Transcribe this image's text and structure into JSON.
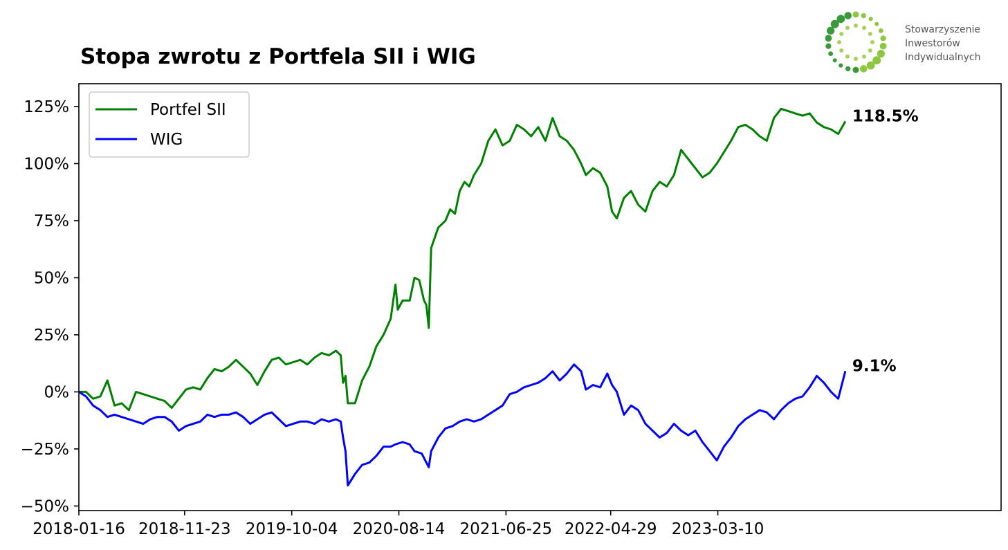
{
  "logo": {
    "text_lines": [
      "Stowarzyszenie",
      "Inwestorów",
      "Indywidualnych"
    ]
  },
  "chart_data": {
    "type": "line",
    "title": "Stopa zwrotu z Portfela SII i WIG",
    "xlabel": "",
    "ylabel": "",
    "x_ticks": [
      "2018-01-16",
      "2018-11-23",
      "2019-10-04",
      "2020-08-14",
      "2021-06-25",
      "2022-04-29",
      "2023-03-10"
    ],
    "x_range": [
      "2018-01-16",
      "2025-06-20"
    ],
    "y_ticks": [
      -50,
      -25,
      0,
      25,
      50,
      75,
      100,
      125
    ],
    "y_tick_labels": [
      "−50%",
      "−25%",
      "0%",
      "25%",
      "50%",
      "75%",
      "100%",
      "125%"
    ],
    "ylim": [
      -52,
      135
    ],
    "grid": false,
    "legend_position": "top-left",
    "series": [
      {
        "name": "Portfel SII",
        "color": "#008000",
        "end_label": "118.5%",
        "points": [
          [
            "2018-01-16",
            0
          ],
          [
            "2018-02-06",
            0
          ],
          [
            "2018-02-27",
            -3
          ],
          [
            "2018-03-20",
            -2
          ],
          [
            "2018-04-10",
            5
          ],
          [
            "2018-05-01",
            -6
          ],
          [
            "2018-05-22",
            -5
          ],
          [
            "2018-06-12",
            -8
          ],
          [
            "2018-07-03",
            0
          ],
          [
            "2018-07-24",
            -1
          ],
          [
            "2018-08-14",
            -2
          ],
          [
            "2018-09-04",
            -3
          ],
          [
            "2018-09-25",
            -4
          ],
          [
            "2018-10-16",
            -7
          ],
          [
            "2018-11-06",
            -3
          ],
          [
            "2018-11-27",
            1
          ],
          [
            "2018-12-18",
            2
          ],
          [
            "2019-01-08",
            1
          ],
          [
            "2019-01-29",
            6
          ],
          [
            "2019-02-19",
            10
          ],
          [
            "2019-03-12",
            9
          ],
          [
            "2019-04-02",
            11
          ],
          [
            "2019-04-23",
            14
          ],
          [
            "2019-05-14",
            11
          ],
          [
            "2019-06-04",
            8
          ],
          [
            "2019-06-25",
            3
          ],
          [
            "2019-07-16",
            9
          ],
          [
            "2019-08-06",
            14
          ],
          [
            "2019-08-27",
            15
          ],
          [
            "2019-09-17",
            12
          ],
          [
            "2019-10-08",
            13
          ],
          [
            "2019-10-29",
            14
          ],
          [
            "2019-11-19",
            12
          ],
          [
            "2019-12-10",
            15
          ],
          [
            "2019-12-31",
            17
          ],
          [
            "2020-01-21",
            16
          ],
          [
            "2020-02-11",
            18
          ],
          [
            "2020-02-25",
            16
          ],
          [
            "2020-03-03",
            4
          ],
          [
            "2020-03-10",
            7
          ],
          [
            "2020-03-17",
            -5
          ],
          [
            "2020-04-07",
            -5
          ],
          [
            "2020-04-28",
            5
          ],
          [
            "2020-05-19",
            11
          ],
          [
            "2020-06-09",
            20
          ],
          [
            "2020-06-30",
            25
          ],
          [
            "2020-07-21",
            32
          ],
          [
            "2020-08-04",
            47
          ],
          [
            "2020-08-11",
            36
          ],
          [
            "2020-08-25",
            40
          ],
          [
            "2020-09-15",
            40
          ],
          [
            "2020-09-29",
            50
          ],
          [
            "2020-10-13",
            49
          ],
          [
            "2020-10-27",
            40
          ],
          [
            "2020-11-03",
            38
          ],
          [
            "2020-11-10",
            28
          ],
          [
            "2020-11-17",
            63
          ],
          [
            "2020-12-08",
            72
          ],
          [
            "2020-12-29",
            75
          ],
          [
            "2021-01-12",
            80
          ],
          [
            "2021-01-26",
            78
          ],
          [
            "2021-02-09",
            88
          ],
          [
            "2021-02-23",
            92
          ],
          [
            "2021-03-09",
            90
          ],
          [
            "2021-03-23",
            95
          ],
          [
            "2021-04-13",
            100
          ],
          [
            "2021-05-04",
            110
          ],
          [
            "2021-05-25",
            115
          ],
          [
            "2021-06-15",
            108
          ],
          [
            "2021-07-06",
            110
          ],
          [
            "2021-07-27",
            117
          ],
          [
            "2021-08-17",
            115
          ],
          [
            "2021-09-07",
            112
          ],
          [
            "2021-09-28",
            116
          ],
          [
            "2021-10-19",
            110
          ],
          [
            "2021-11-09",
            120
          ],
          [
            "2021-11-30",
            112
          ],
          [
            "2021-12-21",
            110
          ],
          [
            "2022-01-11",
            106
          ],
          [
            "2022-02-01",
            100
          ],
          [
            "2022-02-15",
            95
          ],
          [
            "2022-03-08",
            98
          ],
          [
            "2022-03-29",
            96
          ],
          [
            "2022-04-19",
            90
          ],
          [
            "2022-05-03",
            79
          ],
          [
            "2022-05-17",
            76
          ],
          [
            "2022-06-07",
            85
          ],
          [
            "2022-06-28",
            88
          ],
          [
            "2022-07-19",
            82
          ],
          [
            "2022-08-09",
            79
          ],
          [
            "2022-08-30",
            88
          ],
          [
            "2022-09-20",
            92
          ],
          [
            "2022-10-11",
            90
          ],
          [
            "2022-11-01",
            95
          ],
          [
            "2022-11-22",
            106
          ],
          [
            "2022-12-13",
            102
          ],
          [
            "2023-01-03",
            98
          ],
          [
            "2023-01-24",
            94
          ],
          [
            "2023-02-14",
            96
          ],
          [
            "2023-03-07",
            100
          ],
          [
            "2023-03-28",
            105
          ],
          [
            "2023-04-18",
            110
          ],
          [
            "2023-05-09",
            116
          ],
          [
            "2023-05-30",
            117
          ],
          [
            "2023-06-20",
            115
          ],
          [
            "2023-07-11",
            112
          ],
          [
            "2023-08-01",
            110
          ],
          [
            "2023-08-22",
            120
          ],
          [
            "2023-09-12",
            124
          ],
          [
            "2023-10-03",
            123
          ],
          [
            "2023-10-24",
            122
          ],
          [
            "2023-11-14",
            121
          ],
          [
            "2023-12-05",
            122
          ],
          [
            "2023-12-26",
            118
          ],
          [
            "2024-01-16",
            116
          ],
          [
            "2024-02-06",
            115
          ],
          [
            "2024-02-27",
            113
          ],
          [
            "2024-03-19",
            118.5
          ]
        ]
      },
      {
        "name": "WIG",
        "color": "#0000ff",
        "end_label": "9.1%",
        "points": [
          [
            "2018-01-16",
            0
          ],
          [
            "2018-02-06",
            -2
          ],
          [
            "2018-02-27",
            -6
          ],
          [
            "2018-03-20",
            -8
          ],
          [
            "2018-04-10",
            -11
          ],
          [
            "2018-05-01",
            -10
          ],
          [
            "2018-05-22",
            -11
          ],
          [
            "2018-06-12",
            -12
          ],
          [
            "2018-07-03",
            -13
          ],
          [
            "2018-07-24",
            -14
          ],
          [
            "2018-08-14",
            -12
          ],
          [
            "2018-09-04",
            -11
          ],
          [
            "2018-09-25",
            -11
          ],
          [
            "2018-10-16",
            -13
          ],
          [
            "2018-11-06",
            -17
          ],
          [
            "2018-11-27",
            -15
          ],
          [
            "2018-12-18",
            -14
          ],
          [
            "2019-01-08",
            -13
          ],
          [
            "2019-01-29",
            -10
          ],
          [
            "2019-02-19",
            -11
          ],
          [
            "2019-03-12",
            -10
          ],
          [
            "2019-04-02",
            -10
          ],
          [
            "2019-04-23",
            -9
          ],
          [
            "2019-05-14",
            -11
          ],
          [
            "2019-06-04",
            -14
          ],
          [
            "2019-06-25",
            -12
          ],
          [
            "2019-07-16",
            -10
          ],
          [
            "2019-08-06",
            -9
          ],
          [
            "2019-08-27",
            -12
          ],
          [
            "2019-09-17",
            -15
          ],
          [
            "2019-10-08",
            -14
          ],
          [
            "2019-10-29",
            -13
          ],
          [
            "2019-11-19",
            -13
          ],
          [
            "2019-12-10",
            -14
          ],
          [
            "2019-12-31",
            -12
          ],
          [
            "2020-01-21",
            -13
          ],
          [
            "2020-02-11",
            -12
          ],
          [
            "2020-02-25",
            -13
          ],
          [
            "2020-03-03",
            -20
          ],
          [
            "2020-03-10",
            -26
          ],
          [
            "2020-03-17",
            -41
          ],
          [
            "2020-04-07",
            -36
          ],
          [
            "2020-04-28",
            -32
          ],
          [
            "2020-05-19",
            -31
          ],
          [
            "2020-06-09",
            -28
          ],
          [
            "2020-06-30",
            -24
          ],
          [
            "2020-07-21",
            -24
          ],
          [
            "2020-08-04",
            -23
          ],
          [
            "2020-08-25",
            -22
          ],
          [
            "2020-09-15",
            -23
          ],
          [
            "2020-09-29",
            -26
          ],
          [
            "2020-10-20",
            -27
          ],
          [
            "2020-11-10",
            -33
          ],
          [
            "2020-11-17",
            -26
          ],
          [
            "2020-12-08",
            -20
          ],
          [
            "2020-12-29",
            -16
          ],
          [
            "2021-01-19",
            -15
          ],
          [
            "2021-02-09",
            -13
          ],
          [
            "2021-03-02",
            -12
          ],
          [
            "2021-03-23",
            -13
          ],
          [
            "2021-04-13",
            -12
          ],
          [
            "2021-05-04",
            -10
          ],
          [
            "2021-05-25",
            -8
          ],
          [
            "2021-06-15",
            -6
          ],
          [
            "2021-07-06",
            -1
          ],
          [
            "2021-07-27",
            0
          ],
          [
            "2021-08-17",
            2
          ],
          [
            "2021-09-07",
            3
          ],
          [
            "2021-09-28",
            4
          ],
          [
            "2021-10-19",
            6
          ],
          [
            "2021-11-09",
            9
          ],
          [
            "2021-11-30",
            5
          ],
          [
            "2021-12-21",
            8
          ],
          [
            "2022-01-11",
            12
          ],
          [
            "2022-02-01",
            9
          ],
          [
            "2022-02-15",
            1
          ],
          [
            "2022-03-08",
            3
          ],
          [
            "2022-03-29",
            2
          ],
          [
            "2022-04-19",
            8
          ],
          [
            "2022-05-03",
            3
          ],
          [
            "2022-05-17",
            0
          ],
          [
            "2022-06-07",
            -10
          ],
          [
            "2022-06-28",
            -6
          ],
          [
            "2022-07-19",
            -8
          ],
          [
            "2022-08-09",
            -14
          ],
          [
            "2022-08-30",
            -17
          ],
          [
            "2022-09-20",
            -20
          ],
          [
            "2022-10-11",
            -18
          ],
          [
            "2022-11-01",
            -14
          ],
          [
            "2022-11-22",
            -17
          ],
          [
            "2022-12-13",
            -19
          ],
          [
            "2023-01-03",
            -17
          ],
          [
            "2023-01-24",
            -22
          ],
          [
            "2023-02-14",
            -26
          ],
          [
            "2023-03-07",
            -30
          ],
          [
            "2023-03-28",
            -24
          ],
          [
            "2023-04-18",
            -20
          ],
          [
            "2023-05-09",
            -15
          ],
          [
            "2023-05-30",
            -12
          ],
          [
            "2023-06-20",
            -10
          ],
          [
            "2023-07-11",
            -8
          ],
          [
            "2023-08-01",
            -9
          ],
          [
            "2023-08-22",
            -12
          ],
          [
            "2023-09-12",
            -8
          ],
          [
            "2023-10-03",
            -5
          ],
          [
            "2023-10-24",
            -3
          ],
          [
            "2023-11-14",
            -2
          ],
          [
            "2023-12-05",
            2
          ],
          [
            "2023-12-26",
            7
          ],
          [
            "2024-01-16",
            4
          ],
          [
            "2024-02-06",
            0
          ],
          [
            "2024-02-27",
            -3
          ],
          [
            "2024-03-19",
            9.1
          ]
        ]
      }
    ]
  }
}
